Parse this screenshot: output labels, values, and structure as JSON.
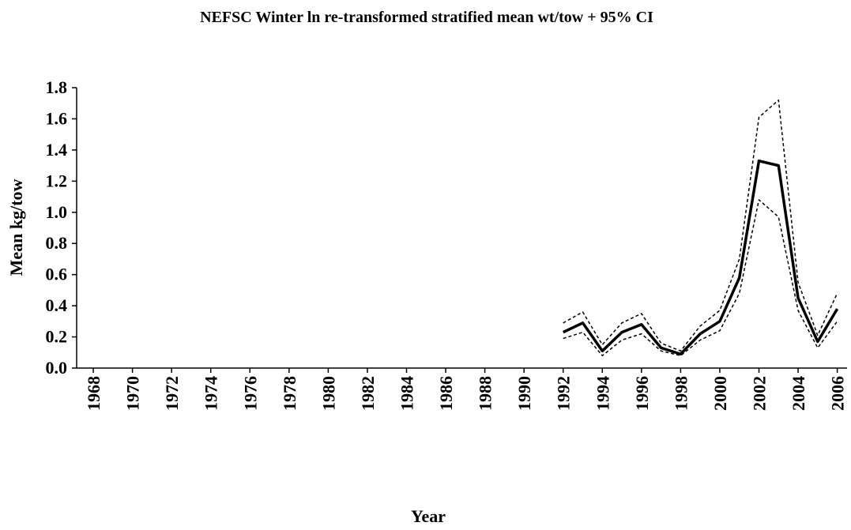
{
  "chart_data": {
    "type": "line",
    "title": "NEFSC Winter ln re-transformed stratified mean wt/tow + 95% CI",
    "x_label": "Year",
    "y_label": "Mean kg/tow",
    "x": [
      1992,
      1993,
      1994,
      1995,
      1996,
      1997,
      1998,
      1999,
      2000,
      2001,
      2002,
      2003,
      2004,
      2005,
      2006
    ],
    "series": [
      {
        "color": "#000000",
        "dash": "none",
        "width": 3.5,
        "values": [
          0.23,
          0.29,
          0.11,
          0.23,
          0.28,
          0.13,
          0.09,
          0.22,
          0.3,
          0.58,
          1.33,
          1.3,
          0.45,
          0.17,
          0.38
        ]
      },
      {
        "color": "#000000",
        "dash": "4 3",
        "width": 1.5,
        "values": [
          0.29,
          0.36,
          0.15,
          0.29,
          0.35,
          0.16,
          0.11,
          0.27,
          0.37,
          0.7,
          1.61,
          1.72,
          0.55,
          0.21,
          0.48
        ]
      },
      {
        "color": "#000000",
        "dash": "4 3",
        "width": 1.5,
        "values": [
          0.19,
          0.23,
          0.08,
          0.18,
          0.22,
          0.11,
          0.08,
          0.18,
          0.24,
          0.48,
          1.08,
          0.97,
          0.37,
          0.13,
          0.3
        ]
      }
    ],
    "xlim": [
      1967.15,
      2006.5
    ],
    "xticks": [
      1968,
      1970,
      1972,
      1974,
      1976,
      1978,
      1980,
      1982,
      1984,
      1986,
      1988,
      1990,
      1992,
      1994,
      1996,
      1998,
      2000,
      2002,
      2004,
      2006
    ],
    "ylim": [
      0,
      1.8
    ],
    "yticks": [
      {
        "value": 0,
        "label": "0.0"
      },
      {
        "value": 0.2,
        "label": "0.2"
      },
      {
        "value": 0.4,
        "label": "0.4"
      },
      {
        "value": 0.6,
        "label": "0.6"
      },
      {
        "value": 0.8,
        "label": "0.8"
      },
      {
        "value": 1.0,
        "label": "1.0"
      },
      {
        "value": 1.2,
        "label": "1.2"
      },
      {
        "value": 1.4,
        "label": "1.4"
      },
      {
        "value": 1.6,
        "label": "1.6"
      },
      {
        "value": 1.8,
        "label": "1.8"
      }
    ],
    "grid": false
  }
}
